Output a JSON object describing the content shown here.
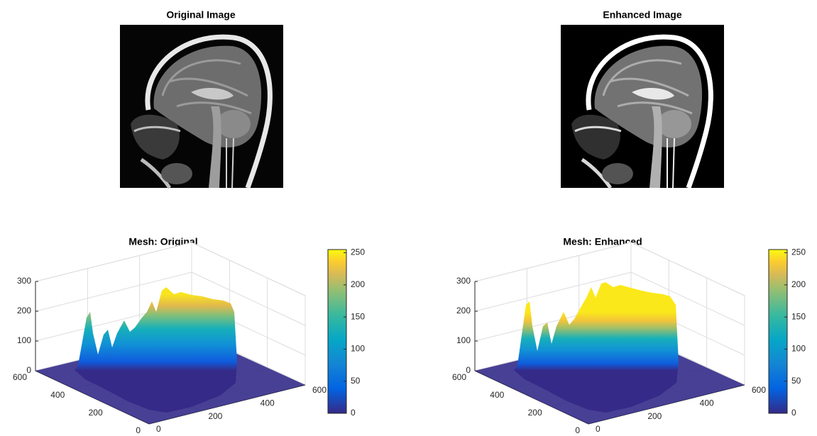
{
  "images": [
    {
      "title": "Original Image"
    },
    {
      "title": "Enhanced Image"
    }
  ],
  "meshes": [
    {
      "title": "Mesh: Original",
      "xlim": [
        0,
        600
      ],
      "ylim": [
        0,
        600
      ],
      "zlim": [
        0,
        300
      ],
      "xticks": [
        0,
        200,
        400,
        600
      ],
      "yticks": [
        0,
        200,
        400,
        600
      ],
      "zticks": [
        0,
        100,
        200,
        300
      ],
      "colorbar": {
        "lim": [
          0,
          255
        ],
        "ticks": [
          0,
          50,
          100,
          150,
          200,
          250
        ]
      }
    },
    {
      "title": "Mesh: Enhanced",
      "xlim": [
        0,
        600
      ],
      "ylim": [
        0,
        600
      ],
      "zlim": [
        0,
        300
      ],
      "xticks": [
        0,
        200,
        400,
        600
      ],
      "yticks": [
        0,
        200,
        400,
        600
      ],
      "zticks": [
        0,
        100,
        200,
        300
      ],
      "colorbar": {
        "lim": [
          0,
          255
        ],
        "ticks": [
          0,
          50,
          100,
          150,
          200,
          250
        ]
      }
    }
  ]
}
